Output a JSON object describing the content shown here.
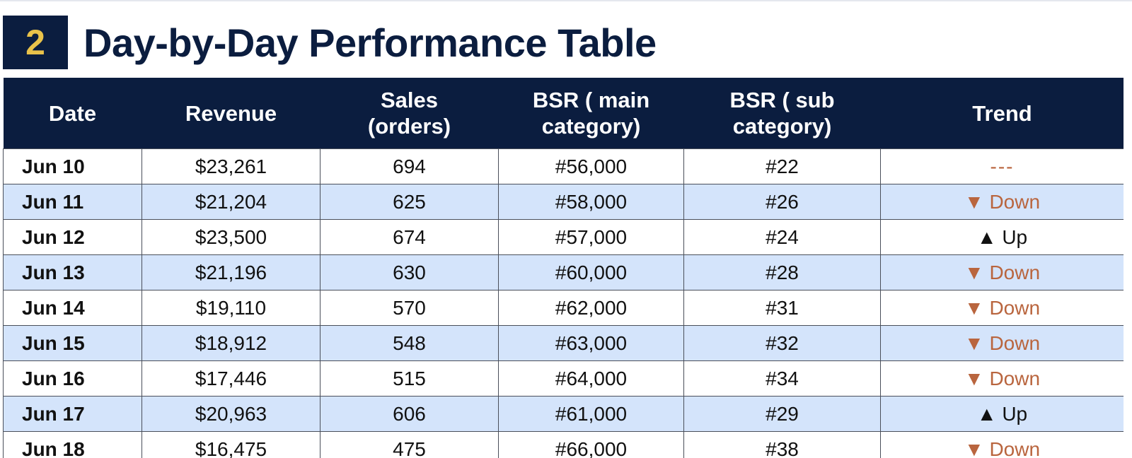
{
  "section": {
    "number": "2",
    "title": "Day-by-Day Performance Table"
  },
  "table": {
    "headers": [
      [
        "Date"
      ],
      [
        "Revenue"
      ],
      [
        "Sales",
        "(orders)"
      ],
      [
        "BSR ( main",
        "category)"
      ],
      [
        "BSR ( sub",
        "category)"
      ],
      [
        "Trend"
      ]
    ],
    "rows": [
      {
        "date": "Jun 10",
        "revenue": "$23,261",
        "sales": "694",
        "bsr_main": "#56,000",
        "bsr_sub": "#22",
        "trend": "---",
        "trend_dir": "flat"
      },
      {
        "date": "Jun 11",
        "revenue": "$21,204",
        "sales": "625",
        "bsr_main": "#58,000",
        "bsr_sub": "#26",
        "trend": "▼ Down",
        "trend_dir": "down"
      },
      {
        "date": "Jun 12",
        "revenue": "$23,500",
        "sales": "674",
        "bsr_main": "#57,000",
        "bsr_sub": "#24",
        "trend": "▲  Up",
        "trend_dir": "up"
      },
      {
        "date": "Jun 13",
        "revenue": "$21,196",
        "sales": "630",
        "bsr_main": "#60,000",
        "bsr_sub": "#28",
        "trend": "▼ Down",
        "trend_dir": "down"
      },
      {
        "date": "Jun 14",
        "revenue": "$19,110",
        "sales": "570",
        "bsr_main": "#62,000",
        "bsr_sub": "#31",
        "trend": "▼ Down",
        "trend_dir": "down"
      },
      {
        "date": "Jun 15",
        "revenue": "$18,912",
        "sales": "548",
        "bsr_main": "#63,000",
        "bsr_sub": "#32",
        "trend": "▼ Down",
        "trend_dir": "down"
      },
      {
        "date": "Jun 16",
        "revenue": "$17,446",
        "sales": "515",
        "bsr_main": "#64,000",
        "bsr_sub": "#34",
        "trend": "▼ Down",
        "trend_dir": "down"
      },
      {
        "date": "Jun 17",
        "revenue": "$20,963",
        "sales": "606",
        "bsr_main": "#61,000",
        "bsr_sub": "#29",
        "trend": "▲  Up",
        "trend_dir": "up"
      },
      {
        "date": "Jun 18",
        "revenue": "$16,475",
        "sales": "475",
        "bsr_main": "#66,000",
        "bsr_sub": "#38",
        "trend": "▼ Down",
        "trend_dir": "down"
      }
    ]
  },
  "colors": {
    "navy": "#0b1d3f",
    "badge_number": "#e9c24a",
    "row_alt": "#d4e4fb",
    "trend_down": "#b9653e"
  }
}
